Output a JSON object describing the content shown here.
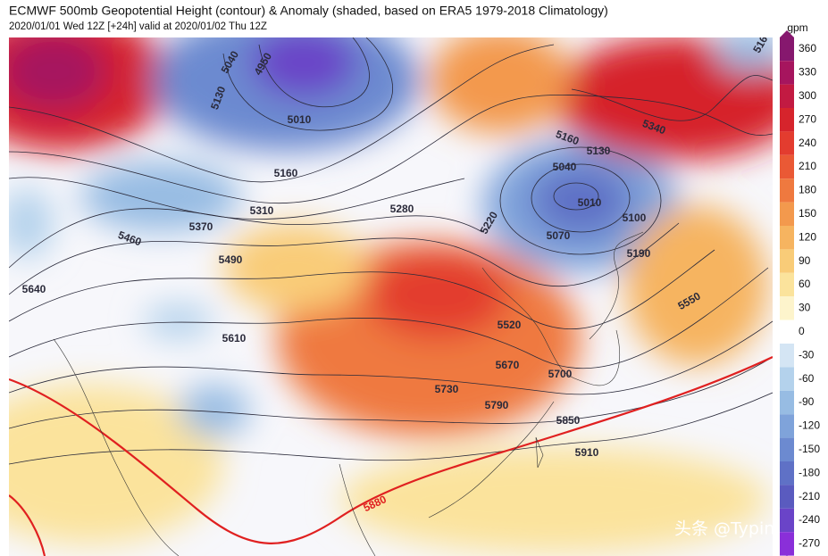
{
  "header": {
    "title": "ECMWF 500mb Geopotential Height (contour) & Anomaly (shaded, based on ERA5 1979-2018 Climatology)",
    "subtitle": "2020/01/01 Wed 12Z [+24h] valid at 2020/01/02 Thu 12Z"
  },
  "colorbar": {
    "unit": "gpm",
    "ticks": [
      "360",
      "330",
      "300",
      "270",
      "240",
      "210",
      "180",
      "150",
      "120",
      "90",
      "60",
      "30",
      "0",
      "-30",
      "-60",
      "-90",
      "-120",
      "-150",
      "-180",
      "-210",
      "-240",
      "-270"
    ],
    "colors": [
      "#86186e",
      "#a6155e",
      "#c21a42",
      "#d6242c",
      "#e33c2f",
      "#ea5935",
      "#ef793f",
      "#f3994d",
      "#f6b460",
      "#f9cc78",
      "#fbe39c",
      "#fdf4cc",
      "#ffffff",
      "#d4e5f4",
      "#b4d2ec",
      "#97bce3",
      "#7fa3da",
      "#6c8ad0",
      "#5f71c6",
      "#5a5bbf",
      "#6a44c8",
      "#8a2fd9"
    ]
  },
  "contour_labels": [
    "5040",
    "4950",
    "5130",
    "5010",
    "5160",
    "5370",
    "5310",
    "5280",
    "5460",
    "5490",
    "5640",
    "5610",
    "5220",
    "5160",
    "5130",
    "5040",
    "5010",
    "5070",
    "5100",
    "5190",
    "5340",
    "5550",
    "5520",
    "5670",
    "5700",
    "5730",
    "5790",
    "5850",
    "5910",
    "5880",
    "516"
  ],
  "watermark": "头条 @Typing"
}
